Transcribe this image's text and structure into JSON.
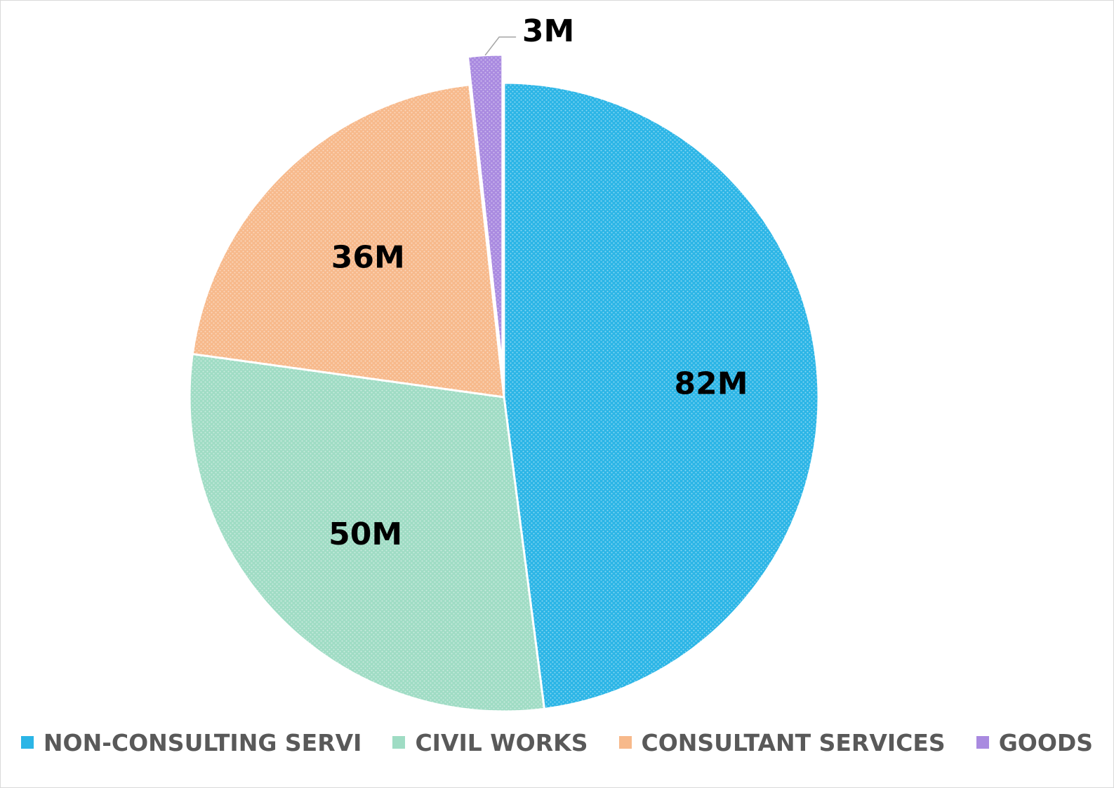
{
  "chart_data": {
    "type": "pie",
    "categories": [
      "NON-CONSULTING SERVI",
      "CIVIL WORKS",
      "CONSULTANT SERVICES",
      "GOODS"
    ],
    "values": [
      82,
      50,
      36,
      3
    ],
    "data_labels": [
      "82M",
      "50M",
      "36M",
      "3M"
    ],
    "colors": [
      "#2bb5e6",
      "#9fdcc4",
      "#f7b98b",
      "#a98ae0"
    ],
    "exploded_slices": [
      "GOODS"
    ],
    "start_angle": "12 o'clock, clockwise",
    "legend_position": "bottom",
    "title": ""
  }
}
